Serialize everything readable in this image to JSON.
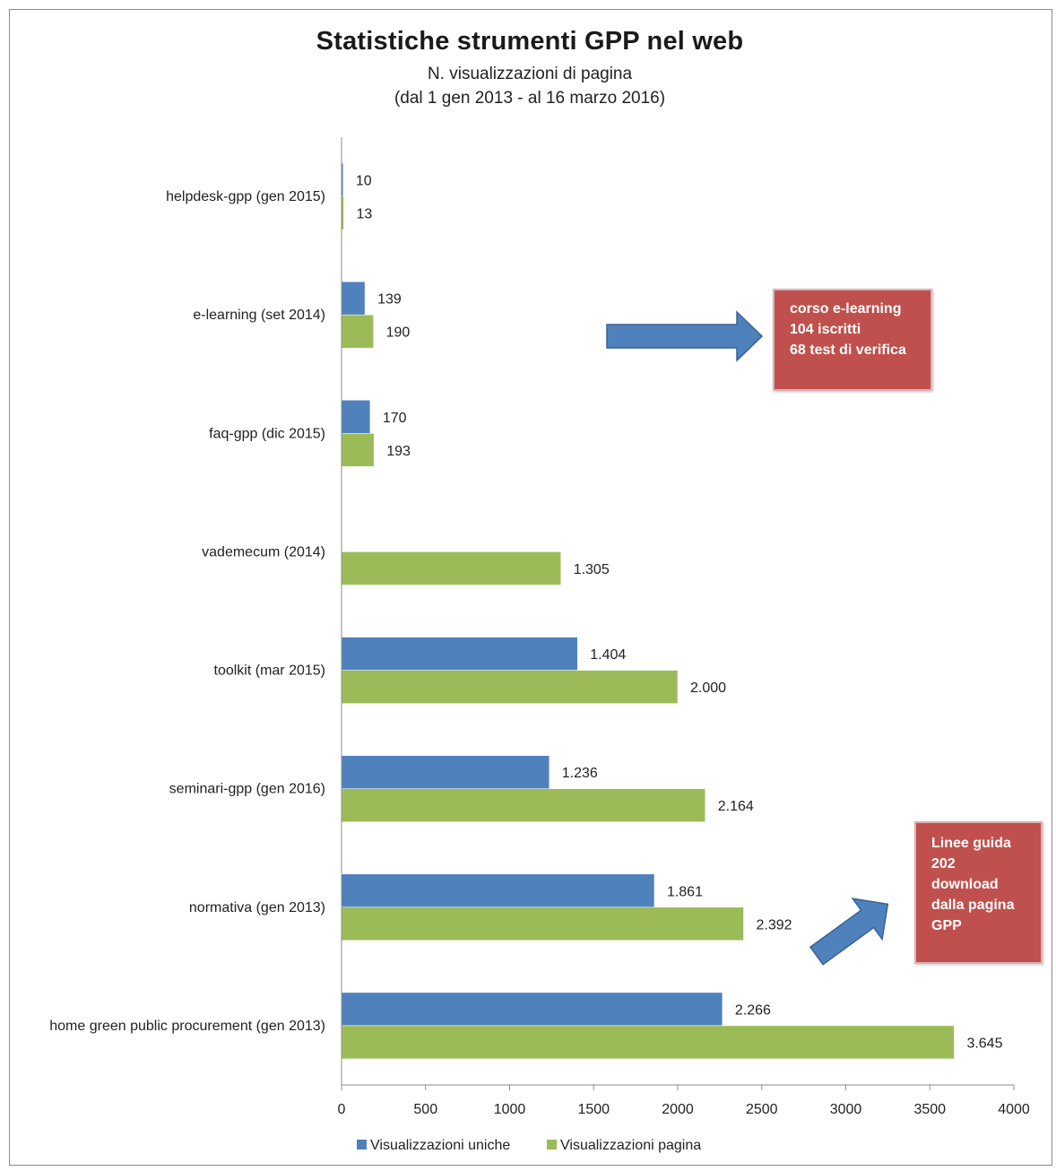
{
  "chart_data": {
    "type": "bar",
    "orientation": "horizontal",
    "title": "Statistiche strumenti GPP nel web",
    "subtitle": [
      "N. visualizzazioni di pagina",
      "(dal 1 gen 2013 - al 16 marzo 2016)"
    ],
    "categories": [
      "helpdesk-gpp (gen 2015)",
      "e-learning (set 2014)",
      "faq-gpp (dic 2015)",
      "vademecum (2014)",
      "toolkit (mar 2015)",
      "seminari-gpp (gen 2016)",
      "normativa (gen 2013)",
      "home green public procurement (gen 2013)"
    ],
    "series": [
      {
        "name": "Visualizzazioni uniche",
        "color": "#4f81bd",
        "values": [
          10,
          139,
          170,
          null,
          1404,
          1236,
          1861,
          2266
        ],
        "labels": [
          "10",
          "139",
          "170",
          "",
          "1.404",
          "1.236",
          "1.861",
          "2.266"
        ]
      },
      {
        "name": "Visualizzazioni pagina",
        "color": "#9bbb59",
        "values": [
          13,
          190,
          193,
          1305,
          2000,
          2164,
          2392,
          3645
        ],
        "labels": [
          "13",
          "190",
          "193",
          "1.305",
          "2.000",
          "2.164",
          "2.392",
          "3.645"
        ]
      }
    ],
    "xlim": [
      0,
      4000
    ],
    "xticks": [
      "0",
      "500",
      "1000",
      "1500",
      "2000",
      "2500",
      "3000",
      "3500",
      "4000"
    ],
    "grid": false,
    "legend_position": "bottom"
  },
  "annotations": [
    {
      "id": "elearning",
      "lines": [
        "corso e-learning",
        "104 iscritti",
        "68 test di verifica"
      ],
      "color": "#c0504d"
    },
    {
      "id": "lineeguida",
      "lines": [
        "Linee guida",
        "202",
        "download",
        "dalla pagina",
        "GPP"
      ],
      "color": "#c0504d"
    }
  ],
  "arrow_color": "#4f81bd"
}
